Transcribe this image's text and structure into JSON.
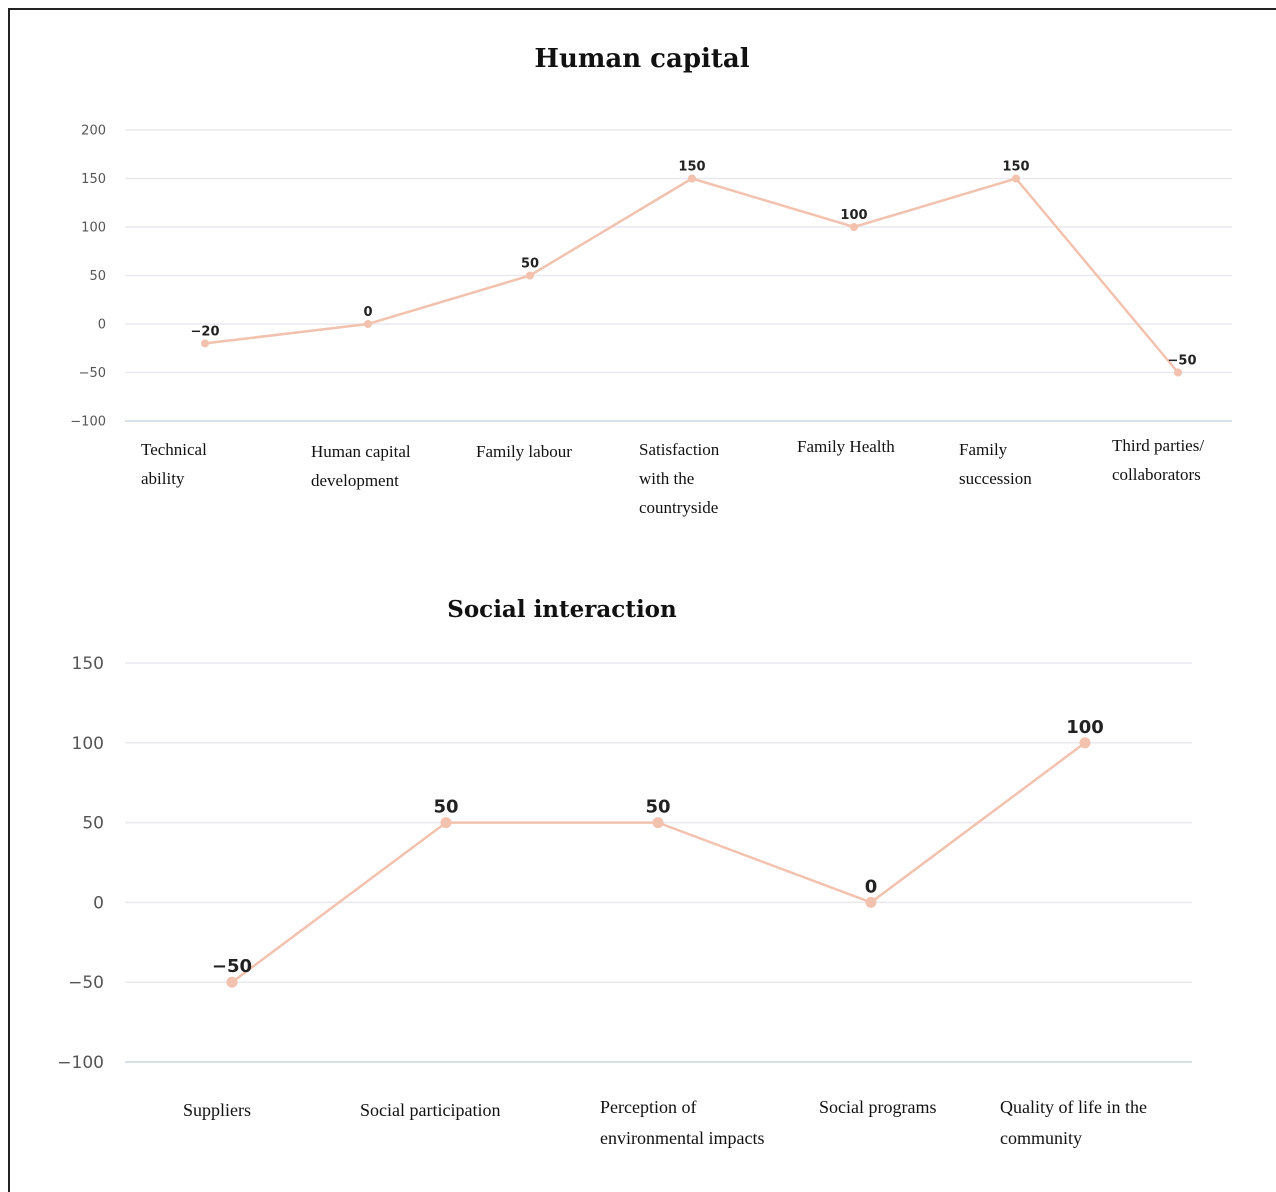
{
  "chart_data": [
    {
      "type": "line",
      "title": "Human capital",
      "categories": [
        [
          "Technical",
          "ability"
        ],
        [
          "Human capital",
          "development"
        ],
        [
          "Family labour"
        ],
        [
          "Satisfaction",
          "with the",
          "countryside"
        ],
        [
          "Family Health"
        ],
        [
          "Family",
          "succession"
        ],
        [
          "Third parties/",
          "collaborators"
        ]
      ],
      "values": [
        -20,
        0,
        50,
        150,
        100,
        150,
        -50
      ],
      "ylim": [
        -100,
        200
      ],
      "yticks": [
        200,
        150,
        100,
        50,
        0,
        -50,
        -100
      ],
      "grid": true,
      "color": "#f2c2ae"
    },
    {
      "type": "line",
      "title": "Social interaction",
      "categories": [
        [
          "Suppliers"
        ],
        [
          "Social participation"
        ],
        [
          "Perception of",
          "environmental impacts"
        ],
        [
          "Social programs"
        ],
        [
          "Quality of life in the",
          "community"
        ]
      ],
      "values": [
        -50,
        50,
        50,
        0,
        100
      ],
      "ylim": [
        -100,
        150
      ],
      "yticks": [
        150,
        100,
        50,
        0,
        -50,
        -100
      ],
      "grid": true,
      "color": "#f2c2ae"
    }
  ]
}
